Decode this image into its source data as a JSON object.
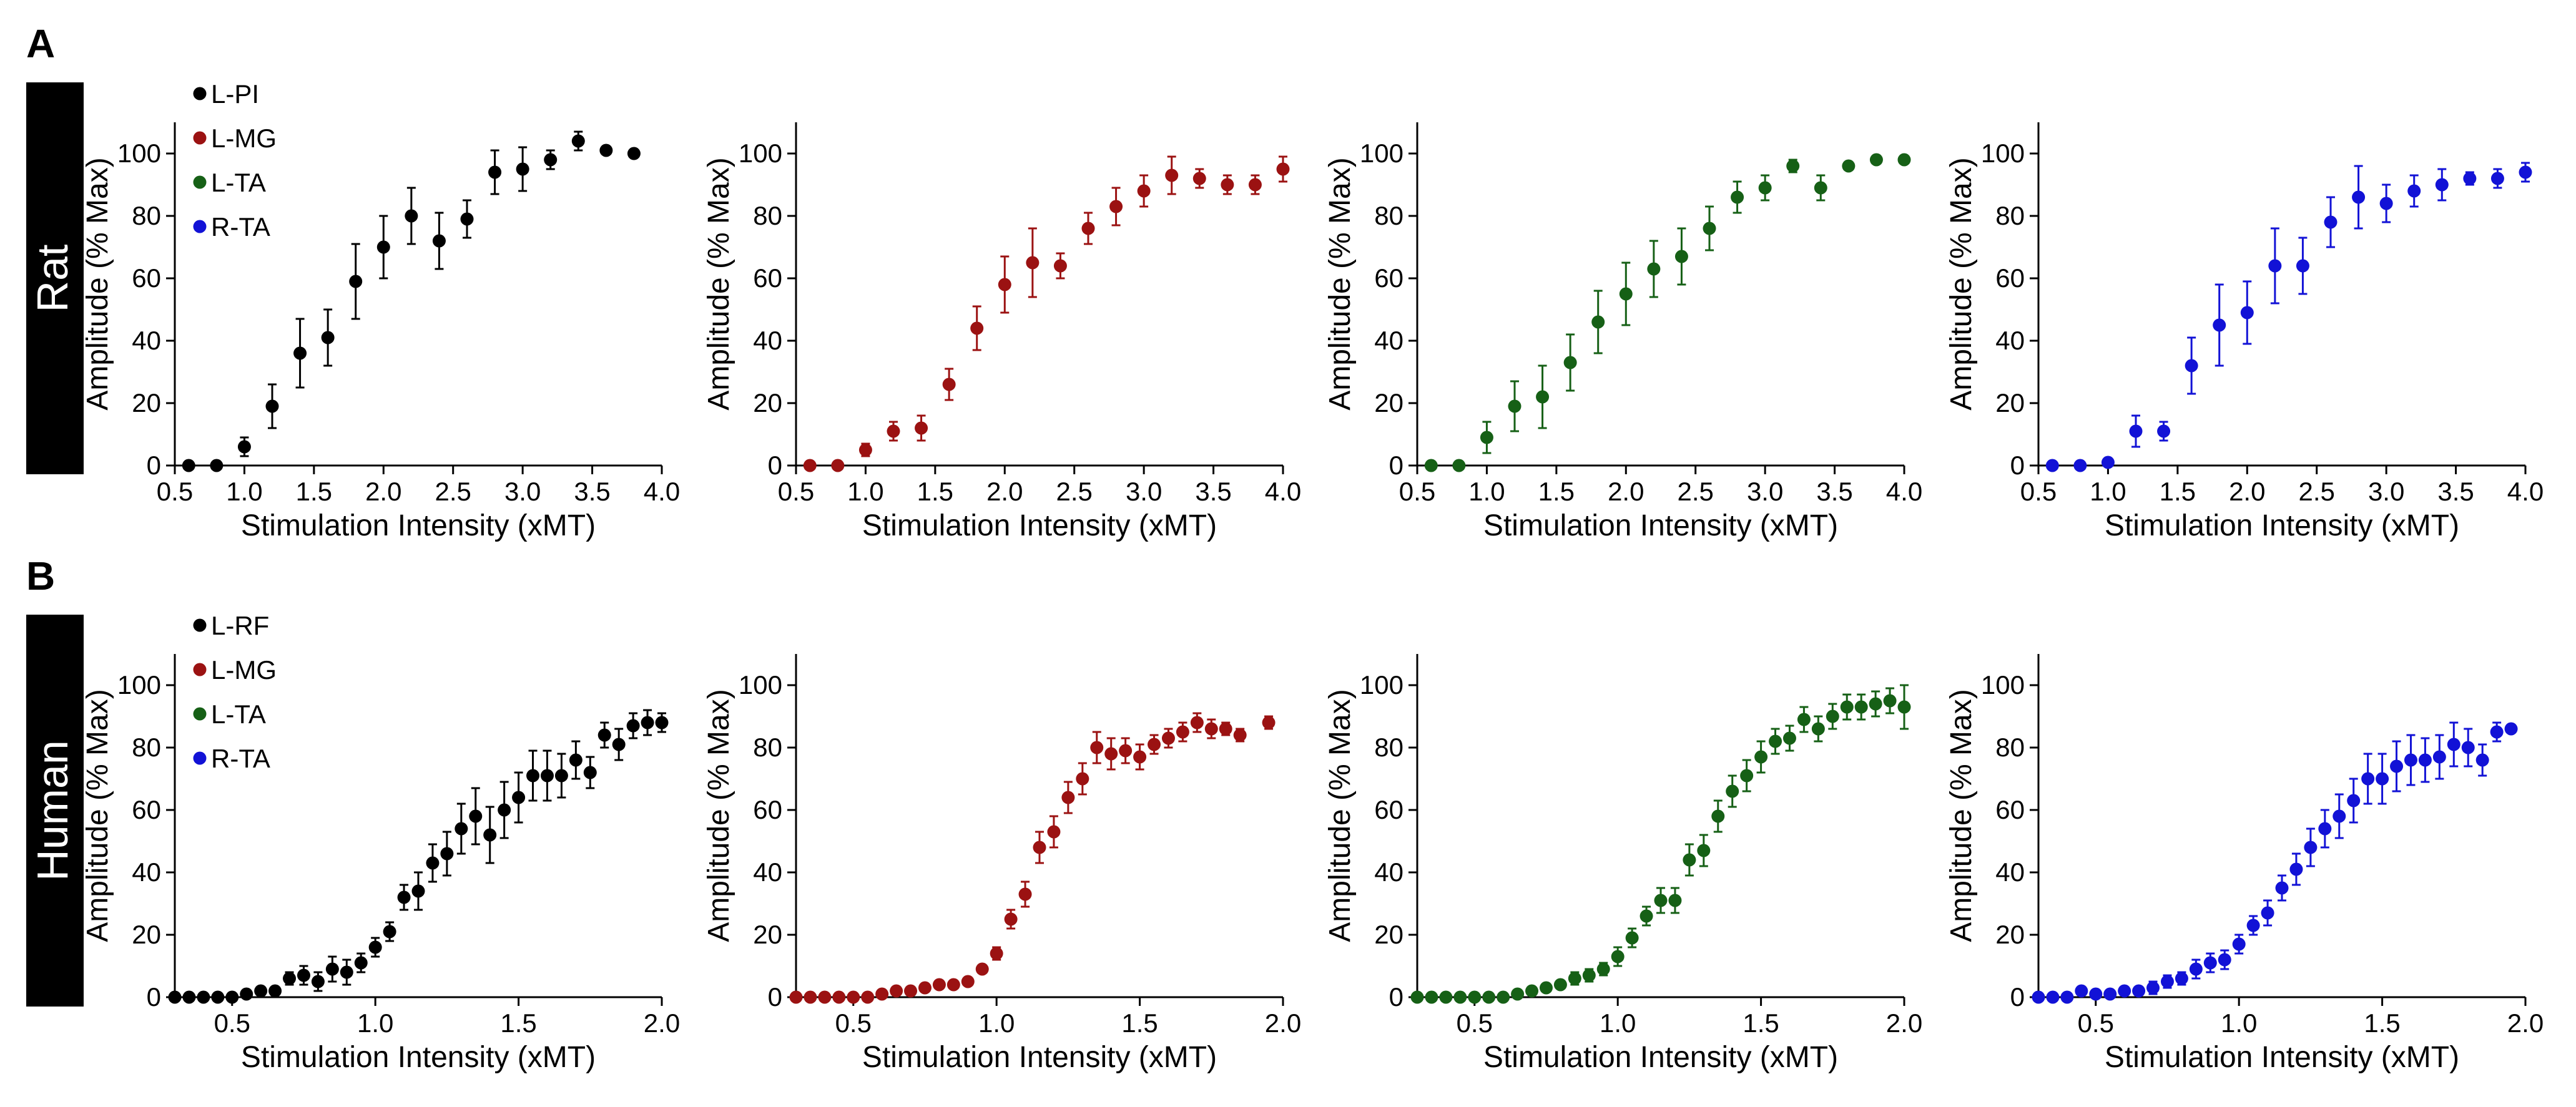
{
  "figure": {
    "panel_letters": [
      "A",
      "B"
    ],
    "row_labels": [
      "Rat",
      "Human"
    ],
    "colors": {
      "black": "#000000",
      "red": "#9b1212",
      "green": "#166016",
      "blue": "#1212d6"
    }
  },
  "chart_data": [
    {
      "type": "scatter",
      "row": 0,
      "col": 0,
      "color": "#000000",
      "xlabel": "Stimulation Intensity (xMT)",
      "ylabel": "Amplitude (% Max)",
      "xlim": [
        0.5,
        4.0
      ],
      "ylim": [
        0,
        110
      ],
      "xticks": [
        "0.5",
        "1.0",
        "1.5",
        "2.0",
        "2.5",
        "3.0",
        "3.5",
        "4.0"
      ],
      "yticks": [
        "0",
        "20",
        "40",
        "60",
        "80",
        "100"
      ],
      "legend": [
        {
          "label": "L-PI",
          "color": "#000000"
        },
        {
          "label": "L-MG",
          "color": "#9b1212"
        },
        {
          "label": "L-TA",
          "color": "#166016"
        },
        {
          "label": "R-TA",
          "color": "#1212d6"
        }
      ],
      "x": [
        0.6,
        0.8,
        1.0,
        1.2,
        1.4,
        1.6,
        1.8,
        2.0,
        2.2,
        2.4,
        2.6,
        2.8,
        3.0,
        3.2,
        3.4,
        3.6,
        3.8
      ],
      "y": [
        0,
        0,
        6,
        19,
        36,
        41,
        59,
        70,
        80,
        72,
        79,
        94,
        95,
        98,
        104,
        101,
        100
      ],
      "err": [
        0,
        0,
        3,
        7,
        11,
        9,
        12,
        10,
        9,
        9,
        6,
        7,
        7,
        3,
        3,
        0,
        0
      ]
    },
    {
      "type": "scatter",
      "row": 0,
      "col": 1,
      "color": "#9b1212",
      "xlabel": "Stimulation Intensity (xMT)",
      "ylabel": "Amplitude (% Max)",
      "xlim": [
        0.5,
        4.0
      ],
      "ylim": [
        0,
        110
      ],
      "xticks": [
        "0.5",
        "1.0",
        "1.5",
        "2.0",
        "2.5",
        "3.0",
        "3.5",
        "4.0"
      ],
      "yticks": [
        "0",
        "20",
        "40",
        "60",
        "80",
        "100"
      ],
      "x": [
        0.6,
        0.8,
        1.0,
        1.2,
        1.4,
        1.6,
        1.8,
        2.0,
        2.2,
        2.4,
        2.6,
        2.8,
        3.0,
        3.2,
        3.4,
        3.6,
        3.8,
        4.0
      ],
      "y": [
        0,
        0,
        5,
        11,
        12,
        26,
        44,
        58,
        65,
        64,
        76,
        83,
        88,
        93,
        92,
        90,
        90,
        95
      ],
      "err": [
        0,
        0,
        2,
        3,
        4,
        5,
        7,
        9,
        11,
        4,
        5,
        6,
        5,
        6,
        3,
        3,
        3,
        4
      ]
    },
    {
      "type": "scatter",
      "row": 0,
      "col": 2,
      "color": "#166016",
      "xlabel": "Stimulation Intensity (xMT)",
      "ylabel": "Amplitude (% Max)",
      "xlim": [
        0.5,
        4.0
      ],
      "ylim": [
        0,
        110
      ],
      "xticks": [
        "0.5",
        "1.0",
        "1.5",
        "2.0",
        "2.5",
        "3.0",
        "3.5",
        "4.0"
      ],
      "yticks": [
        "0",
        "20",
        "40",
        "60",
        "80",
        "100"
      ],
      "x": [
        0.6,
        0.8,
        1.0,
        1.2,
        1.4,
        1.6,
        1.8,
        2.0,
        2.2,
        2.4,
        2.6,
        2.8,
        3.0,
        3.2,
        3.4,
        3.6,
        3.8,
        4.0
      ],
      "y": [
        0,
        0,
        9,
        19,
        22,
        33,
        46,
        55,
        63,
        67,
        76,
        86,
        89,
        96,
        89,
        96,
        98,
        98
      ],
      "err": [
        0,
        0,
        5,
        8,
        10,
        9,
        10,
        10,
        9,
        9,
        7,
        5,
        4,
        2,
        4,
        0,
        0,
        0
      ]
    },
    {
      "type": "scatter",
      "row": 0,
      "col": 3,
      "color": "#1212d6",
      "xlabel": "Stimulation Intensity (xMT)",
      "ylabel": "Amplitude (% Max)",
      "xlim": [
        0.5,
        4.0
      ],
      "ylim": [
        0,
        110
      ],
      "xticks": [
        "0.5",
        "1.0",
        "1.5",
        "2.0",
        "2.5",
        "3.0",
        "3.5",
        "4.0"
      ],
      "yticks": [
        "0",
        "20",
        "40",
        "60",
        "80",
        "100"
      ],
      "x": [
        0.6,
        0.8,
        1.0,
        1.2,
        1.4,
        1.6,
        1.8,
        2.0,
        2.2,
        2.4,
        2.6,
        2.8,
        3.0,
        3.2,
        3.4,
        3.6,
        3.8,
        4.0
      ],
      "y": [
        0,
        0,
        1,
        11,
        11,
        32,
        45,
        49,
        64,
        64,
        78,
        86,
        84,
        88,
        90,
        92,
        92,
        94
      ],
      "err": [
        0,
        0,
        0,
        5,
        3,
        9,
        13,
        10,
        12,
        9,
        8,
        10,
        6,
        5,
        5,
        2,
        3,
        3
      ]
    },
    {
      "type": "scatter",
      "row": 1,
      "col": 0,
      "color": "#000000",
      "xlabel": "Stimulation Intensity (xMT)",
      "ylabel": "Amplitude (% Max)",
      "xlim": [
        0.3,
        2.0
      ],
      "ylim": [
        0,
        110
      ],
      "xticks": [
        "0.5",
        "1.0",
        "1.5",
        "2.0"
      ],
      "yticks": [
        "0",
        "20",
        "40",
        "60",
        "80",
        "100"
      ],
      "legend": [
        {
          "label": "L-RF",
          "color": "#000000"
        },
        {
          "label": "L-MG",
          "color": "#9b1212"
        },
        {
          "label": "L-TA",
          "color": "#166016"
        },
        {
          "label": "R-TA",
          "color": "#1212d6"
        }
      ],
      "x": [
        0.3,
        0.35,
        0.4,
        0.45,
        0.5,
        0.55,
        0.6,
        0.65,
        0.7,
        0.75,
        0.8,
        0.85,
        0.9,
        0.95,
        1.0,
        1.05,
        1.1,
        1.15,
        1.2,
        1.25,
        1.3,
        1.35,
        1.4,
        1.45,
        1.5,
        1.55,
        1.6,
        1.65,
        1.7,
        1.75,
        1.8,
        1.85,
        1.9,
        1.95,
        2.0
      ],
      "y": [
        0,
        0,
        0,
        0,
        0,
        1,
        2,
        2,
        6,
        7,
        5,
        9,
        8,
        11,
        16,
        21,
        32,
        34,
        43,
        46,
        54,
        58,
        52,
        60,
        64,
        71,
        71,
        71,
        76,
        72,
        84,
        81,
        87,
        88,
        88
      ],
      "err": [
        0,
        0,
        0,
        0,
        0,
        0,
        0,
        1,
        2,
        3,
        3,
        4,
        4,
        3,
        3,
        3,
        4,
        6,
        6,
        7,
        8,
        9,
        9,
        9,
        8,
        8,
        8,
        7,
        6,
        5,
        4,
        5,
        4,
        4,
        3
      ]
    },
    {
      "type": "scatter",
      "row": 1,
      "col": 1,
      "color": "#9b1212",
      "xlabel": "Stimulation Intensity (xMT)",
      "ylabel": "Amplitude (% Max)",
      "xlim": [
        0.3,
        2.0
      ],
      "ylim": [
        0,
        110
      ],
      "xticks": [
        "0.5",
        "1.0",
        "1.5",
        "2.0"
      ],
      "yticks": [
        "0",
        "20",
        "40",
        "60",
        "80",
        "100"
      ],
      "x": [
        0.3,
        0.35,
        0.4,
        0.45,
        0.5,
        0.55,
        0.6,
        0.65,
        0.7,
        0.75,
        0.8,
        0.85,
        0.9,
        0.95,
        1.0,
        1.05,
        1.1,
        1.15,
        1.2,
        1.25,
        1.3,
        1.35,
        1.4,
        1.45,
        1.5,
        1.55,
        1.6,
        1.65,
        1.7,
        1.75,
        1.8,
        1.85,
        1.95
      ],
      "y": [
        0,
        0,
        0,
        0,
        0,
        0,
        1,
        2,
        2,
        3,
        4,
        4,
        5,
        9,
        14,
        25,
        33,
        48,
        53,
        64,
        70,
        80,
        78,
        79,
        77,
        81,
        83,
        85,
        88,
        86,
        86,
        84,
        88
      ],
      "err": [
        0,
        0,
        0,
        0,
        0,
        0,
        0,
        0,
        0,
        0,
        1,
        1,
        1,
        1,
        2,
        3,
        4,
        5,
        5,
        5,
        5,
        5,
        5,
        4,
        4,
        3,
        3,
        3,
        3,
        3,
        2,
        2,
        2
      ]
    },
    {
      "type": "scatter",
      "row": 1,
      "col": 2,
      "color": "#166016",
      "xlabel": "Stimulation Intensity (xMT)",
      "ylabel": "Amplitude (% Max)",
      "xlim": [
        0.3,
        2.0
      ],
      "ylim": [
        0,
        110
      ],
      "xticks": [
        "0.5",
        "1.0",
        "1.5",
        "2.0"
      ],
      "yticks": [
        "0",
        "20",
        "40",
        "60",
        "80",
        "100"
      ],
      "x": [
        0.3,
        0.35,
        0.4,
        0.45,
        0.5,
        0.55,
        0.6,
        0.65,
        0.7,
        0.75,
        0.8,
        0.85,
        0.9,
        0.95,
        1.0,
        1.05,
        1.1,
        1.15,
        1.2,
        1.25,
        1.3,
        1.35,
        1.4,
        1.45,
        1.5,
        1.55,
        1.6,
        1.65,
        1.7,
        1.75,
        1.8,
        1.85,
        1.9,
        1.95,
        2.0
      ],
      "y": [
        0,
        0,
        0,
        0,
        0,
        0,
        0,
        1,
        2,
        3,
        4,
        6,
        7,
        9,
        13,
        19,
        26,
        31,
        31,
        44,
        47,
        58,
        66,
        71,
        77,
        82,
        83,
        89,
        86,
        90,
        93,
        93,
        94,
        95,
        93
      ],
      "err": [
        0,
        0,
        0,
        0,
        0,
        0,
        0,
        0,
        1,
        1,
        1,
        2,
        2,
        2,
        3,
        3,
        3,
        4,
        4,
        5,
        5,
        5,
        5,
        5,
        5,
        4,
        4,
        4,
        4,
        4,
        4,
        4,
        4,
        4,
        7
      ]
    },
    {
      "type": "scatter",
      "row": 1,
      "col": 3,
      "color": "#1212d6",
      "xlabel": "Stimulation Intensity (xMT)",
      "ylabel": "Amplitude (% Max)",
      "xlim": [
        0.3,
        2.0
      ],
      "ylim": [
        0,
        110
      ],
      "xticks": [
        "0.5",
        "1.0",
        "1.5",
        "2.0"
      ],
      "yticks": [
        "0",
        "20",
        "40",
        "60",
        "80",
        "100"
      ],
      "x": [
        0.3,
        0.35,
        0.4,
        0.45,
        0.5,
        0.55,
        0.6,
        0.65,
        0.7,
        0.75,
        0.8,
        0.85,
        0.9,
        0.95,
        1.0,
        1.05,
        1.1,
        1.15,
        1.2,
        1.25,
        1.3,
        1.35,
        1.4,
        1.45,
        1.5,
        1.55,
        1.6,
        1.65,
        1.7,
        1.75,
        1.8,
        1.85,
        1.9,
        1.95
      ],
      "y": [
        0,
        0,
        0,
        2,
        1,
        1,
        2,
        2,
        3,
        5,
        6,
        9,
        11,
        12,
        17,
        23,
        27,
        35,
        41,
        48,
        54,
        58,
        63,
        70,
        70,
        74,
        76,
        76,
        77,
        81,
        80,
        76,
        85,
        86
      ],
      "err": [
        0,
        0,
        0,
        1,
        1,
        1,
        1,
        1,
        2,
        2,
        2,
        3,
        3,
        3,
        3,
        3,
        4,
        4,
        5,
        6,
        6,
        7,
        7,
        8,
        8,
        8,
        8,
        7,
        7,
        7,
        6,
        5,
        3,
        0
      ]
    }
  ]
}
